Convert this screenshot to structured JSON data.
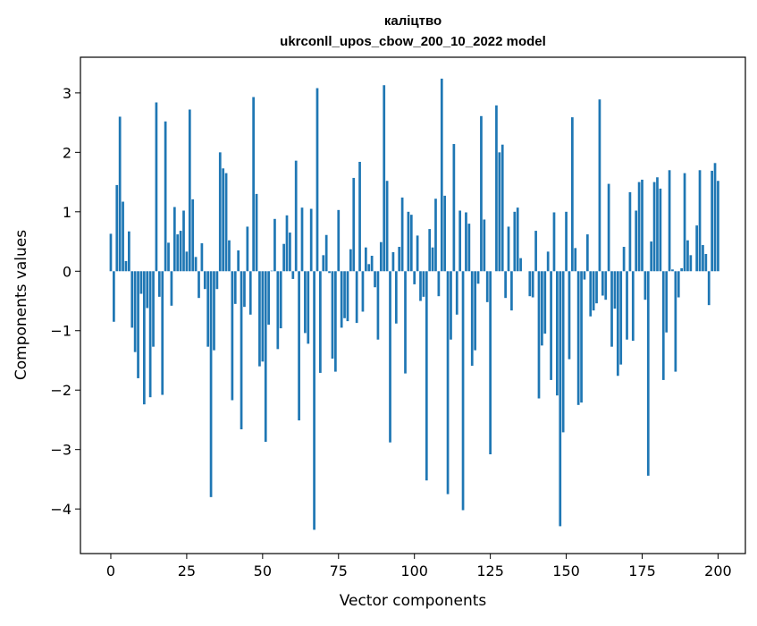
{
  "chart_data": {
    "type": "bar",
    "title_line1": "каліцтво",
    "title_line2": "ukrconll_upos_cbow_200_10_2022 model",
    "xlabel": "Vector components",
    "ylabel": "Components values",
    "bar_color": "#1f77b4",
    "xlim": [
      -10,
      209
    ],
    "ylim": [
      -4.75,
      3.6
    ],
    "x_ticks": [
      0,
      25,
      50,
      75,
      100,
      125,
      150,
      175,
      200
    ],
    "x_tick_labels": [
      "0",
      "25",
      "50",
      "75",
      "100",
      "125",
      "150",
      "175",
      "200"
    ],
    "y_ticks": [
      3,
      2,
      1,
      0,
      -1,
      -2,
      -3,
      -4
    ],
    "y_tick_labels": [
      "3",
      "2",
      "1",
      "0",
      "−1",
      "−2",
      "−3",
      "−4"
    ],
    "values": [
      0.63,
      -0.85,
      1.45,
      2.6,
      1.17,
      0.17,
      0.67,
      -0.95,
      -1.36,
      -1.8,
      -0.38,
      -2.24,
      -0.62,
      -2.12,
      -1.27,
      2.84,
      -0.43,
      -2.08,
      2.52,
      0.48,
      -0.58,
      1.08,
      0.62,
      0.68,
      1.02,
      0.33,
      2.72,
      1.21,
      0.24,
      -0.45,
      0.47,
      -0.3,
      -1.27,
      -3.8,
      -1.33,
      -0.3,
      2.0,
      1.73,
      1.65,
      0.52,
      -2.17,
      -0.55,
      0.35,
      -2.66,
      -0.6,
      0.75,
      -0.73,
      2.93,
      1.3,
      -1.6,
      -1.52,
      -2.87,
      -0.9,
      0.01,
      0.88,
      -1.31,
      -0.96,
      0.46,
      0.94,
      0.65,
      -0.13,
      1.86,
      -2.51,
      1.07,
      -1.04,
      -1.22,
      1.05,
      -4.35,
      3.08,
      -1.71,
      0.27,
      0.61,
      -0.03,
      -1.47,
      -1.69,
      1.03,
      -0.95,
      -0.79,
      -0.84,
      0.37,
      1.57,
      -0.87,
      1.84,
      -0.68,
      0.4,
      0.12,
      0.26,
      -0.27,
      -1.15,
      0.49,
      3.13,
      1.52,
      -2.88,
      0.32,
      -0.88,
      0.41,
      1.24,
      -1.72,
      1.0,
      0.95,
      -0.22,
      0.6,
      -0.5,
      -0.43,
      -3.52,
      0.71,
      0.4,
      1.22,
      -0.42,
      3.24,
      1.27,
      -3.75,
      -1.15,
      2.14,
      -0.73,
      1.02,
      -4.02,
      0.99,
      0.8,
      -1.59,
      -1.33,
      -0.21,
      2.61,
      0.87,
      -0.52,
      -3.08,
      0.0,
      2.79,
      2.0,
      2.13,
      -0.45,
      0.75,
      -0.66,
      1.0,
      1.07,
      0.22,
      0.0,
      0.0,
      -0.42,
      -0.44,
      0.68,
      -2.14,
      -1.25,
      -1.05,
      0.33,
      -1.83,
      0.99,
      -2.09,
      -4.29,
      -2.71,
      1.0,
      -1.48,
      2.59,
      0.39,
      -2.25,
      -2.21,
      -0.14,
      0.62,
      -0.76,
      -0.66,
      -0.54,
      2.89,
      -0.41,
      -0.48,
      1.47,
      -1.27,
      -0.63,
      -1.76,
      -1.57,
      0.41,
      -1.15,
      1.33,
      -1.17,
      1.02,
      1.5,
      1.54,
      -0.48,
      -3.44,
      0.5,
      1.5,
      1.58,
      1.39,
      -1.83,
      -1.03,
      1.7,
      0.03,
      -1.69,
      -0.44,
      0.05,
      1.65,
      0.52,
      0.27,
      -0.0,
      0.77,
      1.7,
      0.44,
      0.29,
      -0.57,
      1.69,
      1.82,
      1.52
    ]
  }
}
